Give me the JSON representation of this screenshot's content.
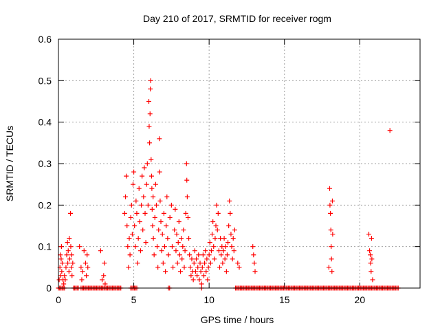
{
  "chart_data": {
    "type": "scatter",
    "title": "Day 210 of 2017, SRMTID for receiver rogm",
    "xlabel": "GPS time / hours",
    "ylabel": "SRMTID / TECUs",
    "xlim": [
      0,
      24
    ],
    "ylim": [
      0,
      0.6
    ],
    "xticks": [
      0,
      5,
      10,
      15,
      20
    ],
    "xtick_labels": [
      "0",
      "5",
      "10",
      "15",
      "20"
    ],
    "yticks": [
      0,
      0.1,
      0.2,
      0.3,
      0.4,
      0.5,
      0.6
    ],
    "ytick_labels": [
      "0",
      "0.1",
      "0.2",
      "0.3",
      "0.4",
      "0.5",
      "0.6"
    ],
    "grid": true,
    "marker": "+",
    "color": "#ff0000",
    "series": [
      {
        "name": "SRMTID",
        "points": [
          [
            0.05,
            0.02
          ],
          [
            0.1,
            0.05
          ],
          [
            0.12,
            0.08
          ],
          [
            0.15,
            0.03
          ],
          [
            0.18,
            0.07
          ],
          [
            0.2,
            0.1
          ],
          [
            0.22,
            0.04
          ],
          [
            0.25,
            0.06
          ],
          [
            0.3,
            0.02
          ],
          [
            0.35,
            0.01
          ],
          [
            0.4,
            0.03
          ],
          [
            0.45,
            0.02
          ],
          [
            0.5,
            0.05
          ],
          [
            0.55,
            0.08
          ],
          [
            0.6,
            0.11
          ],
          [
            0.62,
            0.06
          ],
          [
            0.65,
            0.09
          ],
          [
            0.7,
            0.04
          ],
          [
            0.72,
            0.12
          ],
          [
            0.75,
            0.07
          ],
          [
            0.8,
            0.18
          ],
          [
            0.82,
            0.1
          ],
          [
            0.85,
            0.05
          ],
          [
            0.88,
            0.08
          ],
          [
            0.9,
            0.03
          ],
          [
            0.95,
            0.06
          ],
          [
            1.4,
            0.1
          ],
          [
            1.5,
            0.05
          ],
          [
            1.55,
            0.02
          ],
          [
            1.6,
            0.04
          ],
          [
            1.7,
            0.09
          ],
          [
            1.8,
            0.06
          ],
          [
            1.85,
            0.03
          ],
          [
            1.9,
            0.08
          ],
          [
            1.95,
            0.05
          ],
          [
            2.8,
            0.09
          ],
          [
            2.9,
            0.02
          ],
          [
            3.0,
            0.03
          ],
          [
            3.05,
            0.06
          ],
          [
            3.1,
            0.01
          ],
          [
            4.4,
            0.18
          ],
          [
            4.45,
            0.22
          ],
          [
            4.5,
            0.27
          ],
          [
            4.55,
            0.15
          ],
          [
            4.6,
            0.1
          ],
          [
            4.65,
            0.05
          ],
          [
            4.7,
            0.12
          ],
          [
            4.75,
            0.08
          ],
          [
            4.8,
            0.17
          ],
          [
            4.85,
            0.2
          ],
          [
            4.9,
            0.13
          ],
          [
            4.95,
            0.25
          ],
          [
            5.0,
            0.28
          ],
          [
            5.05,
            0.15
          ],
          [
            5.1,
            0.1
          ],
          [
            5.15,
            0.21
          ],
          [
            5.2,
            0.18
          ],
          [
            5.25,
            0.06
          ],
          [
            5.3,
            0.12
          ],
          [
            5.35,
            0.24
          ],
          [
            5.4,
            0.16
          ],
          [
            5.45,
            0.09
          ],
          [
            5.5,
            0.2
          ],
          [
            5.55,
            0.27
          ],
          [
            5.6,
            0.14
          ],
          [
            5.65,
            0.22
          ],
          [
            5.7,
            0.29
          ],
          [
            5.75,
            0.18
          ],
          [
            5.8,
            0.11
          ],
          [
            5.85,
            0.25
          ],
          [
            5.9,
            0.3
          ],
          [
            5.95,
            0.2
          ],
          [
            6.0,
            0.45
          ],
          [
            6.02,
            0.39
          ],
          [
            6.05,
            0.35
          ],
          [
            6.08,
            0.42
          ],
          [
            6.1,
            0.48
          ],
          [
            6.12,
            0.5
          ],
          [
            6.15,
            0.31
          ],
          [
            6.18,
            0.27
          ],
          [
            6.2,
            0.24
          ],
          [
            6.22,
            0.19
          ],
          [
            6.25,
            0.15
          ],
          [
            6.28,
            0.22
          ],
          [
            6.3,
            0.12
          ],
          [
            6.35,
            0.08
          ],
          [
            6.4,
            0.17
          ],
          [
            6.45,
            0.25
          ],
          [
            6.5,
            0.2
          ],
          [
            6.55,
            0.1
          ],
          [
            6.6,
            0.05
          ],
          [
            6.65,
            0.14
          ],
          [
            6.7,
            0.36
          ],
          [
            6.72,
            0.28
          ],
          [
            6.75,
            0.21
          ],
          [
            6.8,
            0.16
          ],
          [
            6.85,
            0.09
          ],
          [
            6.9,
            0.13
          ],
          [
            6.95,
            0.06
          ],
          [
            7.0,
            0.18
          ],
          [
            7.05,
            0.1
          ],
          [
            7.1,
            0.04
          ],
          [
            7.15,
            0.15
          ],
          [
            7.2,
            0.22
          ],
          [
            7.25,
            0.12
          ],
          [
            7.3,
            0.08
          ],
          [
            7.4,
            0.17
          ],
          [
            7.5,
            0.2
          ],
          [
            7.55,
            0.1
          ],
          [
            7.6,
            0.05
          ],
          [
            7.7,
            0.14
          ],
          [
            7.75,
            0.19
          ],
          [
            7.8,
            0.09
          ],
          [
            7.85,
            0.13
          ],
          [
            7.9,
            0.06
          ],
          [
            7.95,
            0.11
          ],
          [
            8.0,
            0.16
          ],
          [
            8.05,
            0.08
          ],
          [
            8.1,
            0.04
          ],
          [
            8.15,
            0.12
          ],
          [
            8.2,
            0.07
          ],
          [
            8.25,
            0.1
          ],
          [
            8.3,
            0.14
          ],
          [
            8.35,
            0.05
          ],
          [
            8.4,
            0.09
          ],
          [
            8.45,
            0.18
          ],
          [
            8.5,
            0.3
          ],
          [
            8.52,
            0.26
          ],
          [
            8.55,
            0.22
          ],
          [
            8.6,
            0.17
          ],
          [
            8.65,
            0.12
          ],
          [
            8.7,
            0.08
          ],
          [
            8.75,
            0.05
          ],
          [
            8.8,
            0.03
          ],
          [
            8.85,
            0.07
          ],
          [
            8.9,
            0.04
          ],
          [
            8.95,
            0.02
          ],
          [
            9.0,
            0.06
          ],
          [
            9.05,
            0.09
          ],
          [
            9.1,
            0.04
          ],
          [
            9.15,
            0.07
          ],
          [
            9.2,
            0.03
          ],
          [
            9.25,
            0.05
          ],
          [
            9.3,
            0.08
          ],
          [
            9.35,
            0.02
          ],
          [
            9.4,
            0.06
          ],
          [
            9.45,
            0.04
          ],
          [
            9.5,
            0.01
          ],
          [
            9.55,
            0.05
          ],
          [
            9.6,
            0.08
          ],
          [
            9.65,
            0.03
          ],
          [
            9.7,
            0.06
          ],
          [
            9.75,
            0.09
          ],
          [
            9.8,
            0.04
          ],
          [
            9.85,
            0.07
          ],
          [
            9.9,
            0.02
          ],
          [
            9.95,
            0.05
          ],
          [
            10.0,
            0.08
          ],
          [
            10.05,
            0.11
          ],
          [
            10.1,
            0.06
          ],
          [
            10.15,
            0.09
          ],
          [
            10.2,
            0.13
          ],
          [
            10.25,
            0.16
          ],
          [
            10.3,
            0.1
          ],
          [
            10.35,
            0.07
          ],
          [
            10.4,
            0.12
          ],
          [
            10.45,
            0.15
          ],
          [
            10.5,
            0.2
          ],
          [
            10.55,
            0.14
          ],
          [
            10.6,
            0.18
          ],
          [
            10.65,
            0.09
          ],
          [
            10.7,
            0.05
          ],
          [
            10.75,
            0.12
          ],
          [
            10.8,
            0.08
          ],
          [
            10.85,
            0.1
          ],
          [
            10.9,
            0.06
          ],
          [
            10.95,
            0.09
          ],
          [
            11.0,
            0.12
          ],
          [
            11.05,
            0.07
          ],
          [
            11.1,
            0.1
          ],
          [
            11.15,
            0.04
          ],
          [
            11.2,
            0.08
          ],
          [
            11.25,
            0.11
          ],
          [
            11.3,
            0.15
          ],
          [
            11.35,
            0.21
          ],
          [
            11.4,
            0.18
          ],
          [
            11.45,
            0.13
          ],
          [
            11.5,
            0.1
          ],
          [
            11.55,
            0.07
          ],
          [
            11.6,
            0.12
          ],
          [
            11.65,
            0.09
          ],
          [
            11.7,
            0.14
          ],
          [
            11.9,
            0.06
          ],
          [
            12.0,
            0.05
          ],
          [
            12.9,
            0.1
          ],
          [
            12.95,
            0.08
          ],
          [
            13.0,
            0.06
          ],
          [
            13.05,
            0.04
          ],
          [
            17.95,
            0.05
          ],
          [
            18.0,
            0.24
          ],
          [
            18.02,
            0.2
          ],
          [
            18.05,
            0.18
          ],
          [
            18.08,
            0.14
          ],
          [
            18.1,
            0.1
          ],
          [
            18.12,
            0.07
          ],
          [
            18.15,
            0.04
          ],
          [
            18.18,
            0.21
          ],
          [
            18.2,
            0.13
          ],
          [
            20.6,
            0.13
          ],
          [
            20.65,
            0.09
          ],
          [
            20.7,
            0.08
          ],
          [
            20.72,
            0.06
          ],
          [
            20.75,
            0.04
          ],
          [
            20.78,
            0.12
          ],
          [
            20.8,
            0.07
          ],
          [
            20.85,
            0.02
          ],
          [
            22.0,
            0.38
          ]
        ],
        "zero_runs": [
          [
            0.0,
            0.45
          ],
          [
            1.0,
            1.35
          ],
          [
            1.5,
            4.2
          ],
          [
            4.8,
            5.2
          ],
          [
            7.3,
            7.4
          ],
          [
            9.5,
            9.55
          ],
          [
            11.75,
            22.6
          ]
        ]
      }
    ]
  }
}
